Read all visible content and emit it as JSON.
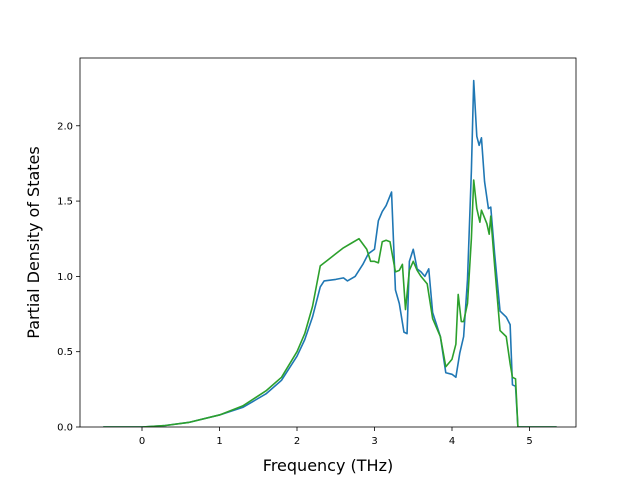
{
  "chart_data": {
    "type": "line",
    "title": "",
    "xlabel": "Frequency (THz)",
    "ylabel": "Partial Density of States",
    "xlim": [
      -0.8,
      5.6
    ],
    "ylim": [
      0.0,
      2.45
    ],
    "xticks": [
      0,
      1,
      2,
      3,
      4,
      5
    ],
    "yticks": [
      0.0,
      0.5,
      1.0,
      1.5,
      2.0
    ],
    "xtick_labels": [
      "0",
      "1",
      "2",
      "3",
      "4",
      "5"
    ],
    "ytick_labels": [
      "0.0",
      "0.5",
      "1.0",
      "1.5",
      "2.0"
    ],
    "grid": false,
    "legend": "none",
    "series": [
      {
        "color": "#1f77b4",
        "points": [
          [
            -0.5,
            0.0
          ],
          [
            0.0,
            0.0
          ],
          [
            0.3,
            0.01
          ],
          [
            0.6,
            0.03
          ],
          [
            1.0,
            0.08
          ],
          [
            1.3,
            0.13
          ],
          [
            1.6,
            0.22
          ],
          [
            1.8,
            0.31
          ],
          [
            2.0,
            0.47
          ],
          [
            2.1,
            0.58
          ],
          [
            2.2,
            0.73
          ],
          [
            2.3,
            0.93
          ],
          [
            2.35,
            0.97
          ],
          [
            2.5,
            0.98
          ],
          [
            2.6,
            0.99
          ],
          [
            2.65,
            0.97
          ],
          [
            2.75,
            1.0
          ],
          [
            2.85,
            1.08
          ],
          [
            2.92,
            1.15
          ],
          [
            3.0,
            1.18
          ],
          [
            3.05,
            1.37
          ],
          [
            3.1,
            1.43
          ],
          [
            3.15,
            1.47
          ],
          [
            3.22,
            1.56
          ],
          [
            3.27,
            0.91
          ],
          [
            3.32,
            0.82
          ],
          [
            3.38,
            0.63
          ],
          [
            3.42,
            0.62
          ],
          [
            3.45,
            1.1
          ],
          [
            3.5,
            1.18
          ],
          [
            3.55,
            1.05
          ],
          [
            3.6,
            1.03
          ],
          [
            3.65,
            1.0
          ],
          [
            3.7,
            1.05
          ],
          [
            3.75,
            0.76
          ],
          [
            3.85,
            0.6
          ],
          [
            3.92,
            0.36
          ],
          [
            4.0,
            0.35
          ],
          [
            4.05,
            0.33
          ],
          [
            4.1,
            0.49
          ],
          [
            4.15,
            0.6
          ],
          [
            4.2,
            0.98
          ],
          [
            4.25,
            1.7
          ],
          [
            4.28,
            2.3
          ],
          [
            4.32,
            1.93
          ],
          [
            4.35,
            1.87
          ],
          [
            4.38,
            1.92
          ],
          [
            4.42,
            1.63
          ],
          [
            4.47,
            1.45
          ],
          [
            4.5,
            1.46
          ],
          [
            4.55,
            1.15
          ],
          [
            4.62,
            0.77
          ],
          [
            4.7,
            0.73
          ],
          [
            4.75,
            0.68
          ],
          [
            4.78,
            0.28
          ],
          [
            4.82,
            0.27
          ],
          [
            4.85,
            0.0
          ],
          [
            5.35,
            0.0
          ]
        ]
      },
      {
        "color": "#2ca02c",
        "points": [
          [
            -0.5,
            0.0
          ],
          [
            0.0,
            0.0
          ],
          [
            0.3,
            0.01
          ],
          [
            0.6,
            0.03
          ],
          [
            1.0,
            0.08
          ],
          [
            1.3,
            0.14
          ],
          [
            1.6,
            0.24
          ],
          [
            1.8,
            0.33
          ],
          [
            2.0,
            0.5
          ],
          [
            2.1,
            0.62
          ],
          [
            2.2,
            0.8
          ],
          [
            2.3,
            1.07
          ],
          [
            2.4,
            1.11
          ],
          [
            2.5,
            1.15
          ],
          [
            2.6,
            1.19
          ],
          [
            2.7,
            1.22
          ],
          [
            2.8,
            1.25
          ],
          [
            2.9,
            1.18
          ],
          [
            2.95,
            1.1
          ],
          [
            3.0,
            1.1
          ],
          [
            3.05,
            1.09
          ],
          [
            3.1,
            1.23
          ],
          [
            3.15,
            1.24
          ],
          [
            3.2,
            1.23
          ],
          [
            3.27,
            1.03
          ],
          [
            3.32,
            1.04
          ],
          [
            3.36,
            1.08
          ],
          [
            3.4,
            0.78
          ],
          [
            3.45,
            1.04
          ],
          [
            3.5,
            1.1
          ],
          [
            3.55,
            1.04
          ],
          [
            3.6,
            1.0
          ],
          [
            3.68,
            0.95
          ],
          [
            3.75,
            0.72
          ],
          [
            3.85,
            0.6
          ],
          [
            3.92,
            0.4
          ],
          [
            4.0,
            0.45
          ],
          [
            4.05,
            0.55
          ],
          [
            4.08,
            0.88
          ],
          [
            4.12,
            0.7
          ],
          [
            4.15,
            0.7
          ],
          [
            4.2,
            0.82
          ],
          [
            4.25,
            1.25
          ],
          [
            4.28,
            1.64
          ],
          [
            4.32,
            1.45
          ],
          [
            4.36,
            1.36
          ],
          [
            4.38,
            1.44
          ],
          [
            4.45,
            1.35
          ],
          [
            4.48,
            1.28
          ],
          [
            4.5,
            1.4
          ],
          [
            4.55,
            1.07
          ],
          [
            4.62,
            0.64
          ],
          [
            4.7,
            0.6
          ],
          [
            4.75,
            0.42
          ],
          [
            4.78,
            0.33
          ],
          [
            4.82,
            0.32
          ],
          [
            4.85,
            0.0
          ],
          [
            5.35,
            0.0
          ]
        ]
      }
    ]
  }
}
